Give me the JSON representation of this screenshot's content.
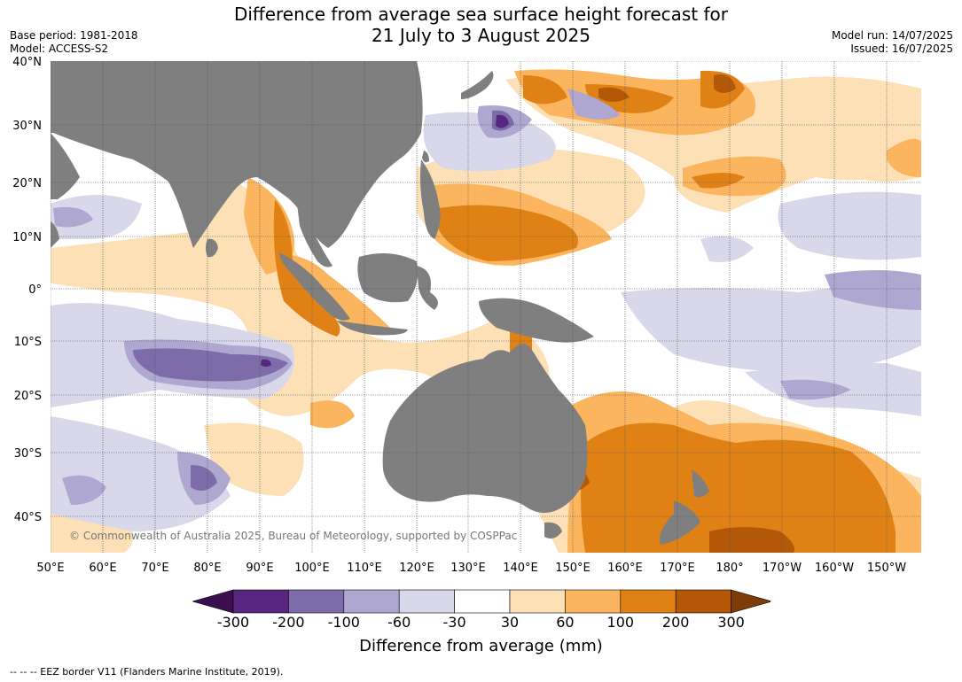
{
  "title_line1": "Difference from average sea surface height forecast for",
  "title_line2": "21 July to 3 August 2025",
  "base_period": "Base period: 1981-2018",
  "model": "Model: ACCESS-S2",
  "model_run": "Model run: 14/07/2025",
  "issued": "Issued: 16/07/2025",
  "copyright": "© Commonwealth of Australia 2025, Bureau of Meteorology, supported by COSPPac",
  "lat_labels": [
    "40°N",
    "30°N",
    "20°N",
    "10°N",
    "0°",
    "10°S",
    "20°S",
    "30°S",
    "40°S"
  ],
  "lon_labels": [
    "50°E",
    "60°E",
    "70°E",
    "80°E",
    "90°E",
    "100°E",
    "110°E",
    "120°E",
    "130°E",
    "140°E",
    "150°E",
    "160°E",
    "170°E",
    "180°",
    "170°W",
    "160°W",
    "150°W"
  ],
  "colorbar": {
    "ticks": [
      "-300",
      "-200",
      "-100",
      "-60",
      "-30",
      "30",
      "60",
      "100",
      "200",
      "300"
    ],
    "colors": [
      "#3b0f4f",
      "#58257f",
      "#7e6baa",
      "#aea7cf",
      "#d8d8ea",
      "#ffffff",
      "#fde0b5",
      "#fbb55e",
      "#e08116",
      "#b35807",
      "#7f3b08"
    ],
    "title": "Difference from average (mm)"
  },
  "footer": "--  --  -- EEZ border V11 (Flanders Marine Institute, 2019).",
  "land_color": "#7f7f7f",
  "grid_color": "#555555"
}
